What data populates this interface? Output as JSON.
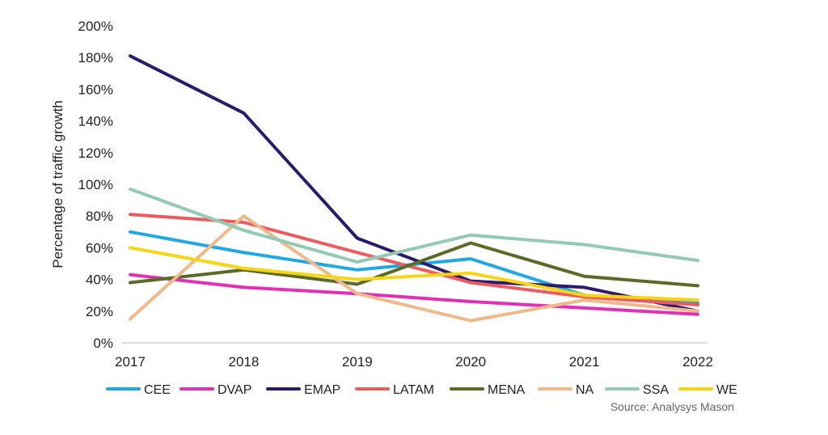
{
  "chart_data": {
    "type": "line",
    "x": [
      "2017",
      "2018",
      "2019",
      "2020",
      "2021",
      "2022"
    ],
    "ylabel": "Percentage of traffic growth",
    "yticks": [
      "0%",
      "20%",
      "40%",
      "60%",
      "80%",
      "100%",
      "120%",
      "140%",
      "160%",
      "180%",
      "200%"
    ],
    "ylim": [
      0,
      200
    ],
    "grid": false,
    "legend_position": "bottom",
    "source": "Source: Analysys Mason",
    "series": [
      {
        "name": "CEE",
        "color": "#1ea8e6",
        "values": [
          70,
          57,
          46,
          53,
          30,
          25
        ]
      },
      {
        "name": "DVAP",
        "color": "#e32fb5",
        "values": [
          43,
          35,
          31,
          26,
          22,
          18
        ]
      },
      {
        "name": "EMAP",
        "color": "#2c1b6c",
        "values": [
          181,
          145,
          66,
          39,
          35,
          20
        ]
      },
      {
        "name": "LATAM",
        "color": "#ef5a5e",
        "values": [
          81,
          76,
          57,
          38,
          29,
          24
        ]
      },
      {
        "name": "MENA",
        "color": "#5b6b25",
        "values": [
          38,
          46,
          37,
          63,
          42,
          36
        ]
      },
      {
        "name": "NA",
        "color": "#efb98a",
        "values": [
          15,
          80,
          31,
          14,
          27,
          20
        ]
      },
      {
        "name": "SSA",
        "color": "#93cab5",
        "values": [
          97,
          71,
          51,
          68,
          62,
          52
        ]
      },
      {
        "name": "WE",
        "color": "#f7d513",
        "values": [
          60,
          47,
          40,
          44,
          30,
          27
        ]
      }
    ]
  }
}
